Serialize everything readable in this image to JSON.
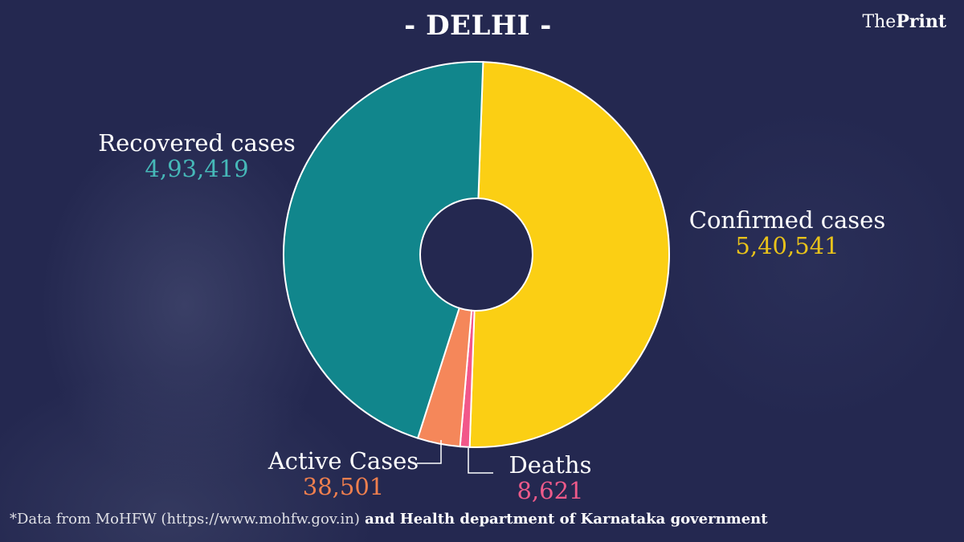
{
  "title": "- DELHI -",
  "logo": {
    "pre": "The",
    "bold": "Print"
  },
  "footer": {
    "part1": "*Data from MoHFW (https://www.mohfw.gov.in)",
    "part2": " and Health department of  Karnataka government"
  },
  "chart_data": {
    "type": "pie",
    "donut": true,
    "title": "- DELHI -",
    "slices": [
      {
        "label": "Confirmed cases",
        "value_text": "5,40,541",
        "value": 540541,
        "color": "#fbcf14"
      },
      {
        "label": "Deaths",
        "value_text": "8,621",
        "value": 8621,
        "color": "#f2578a"
      },
      {
        "label": "Active Cases",
        "value_text": "38,501",
        "value": 38501,
        "color": "#f5875a"
      },
      {
        "label": "Recovered cases",
        "value_text": "4,93,419",
        "value": 493419,
        "color": "#11868c"
      }
    ],
    "value_colors": {
      "Confirmed cases": "#e8c21a",
      "Deaths": "#ee5a8a",
      "Active Cases": "#ef7f4e",
      "Recovered cases": "#46b8b8"
    }
  }
}
